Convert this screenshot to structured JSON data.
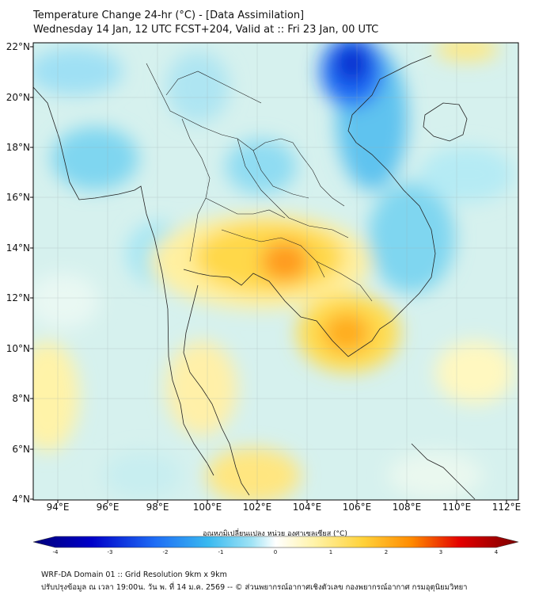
{
  "title": {
    "line1": "Temperature Change 24-hr (°C) - [Data Assimilation]",
    "line2": "Wednesday 14 Jan, 12 UTC FCST+204, Valid at :: Fri 23 Jan, 00 UTC"
  },
  "map": {
    "lat_labels": [
      "22°N",
      "20°N",
      "18°N",
      "16°N",
      "14°N",
      "12°N",
      "10°N",
      "8°N",
      "6°N",
      "4°N"
    ],
    "lat_values": [
      22,
      20,
      18,
      16,
      14,
      12,
      10,
      8,
      6,
      4
    ],
    "lon_labels": [
      "94°E",
      "96°E",
      "98°E",
      "100°E",
      "102°E",
      "104°E",
      "106°E",
      "108°E",
      "110°E",
      "112°E"
    ],
    "lon_values": [
      94,
      96,
      98,
      100,
      102,
      104,
      106,
      108,
      110,
      112
    ],
    "lon_range": [
      93,
      112.5
    ],
    "lat_range": [
      4,
      22.2
    ],
    "background_color": "#d6f1ee",
    "warm_anomalies": [
      {
        "name": "central-thailand-cambodia",
        "lon": 103.2,
        "lat": 13.6,
        "value": 2.0
      },
      {
        "name": "mekong-delta",
        "lon": 105.9,
        "lat": 10.5,
        "value": 1.6
      },
      {
        "name": "southern-thailand",
        "lon": 101.5,
        "lat": 5.2,
        "value": 1.0
      },
      {
        "name": "andaman-west",
        "lon": 93.2,
        "lat": 8.5,
        "value": 0.9
      }
    ],
    "cold_anomalies": [
      {
        "name": "gulf-of-tonkin-north",
        "lon": 106.0,
        "lat": 21.8,
        "value": -3.2
      },
      {
        "name": "myanmar-west",
        "lon": 95.0,
        "lat": 17.8,
        "value": -1.2
      },
      {
        "name": "laos-vietnam-coast",
        "lon": 108.8,
        "lat": 14.2,
        "value": -1.0
      }
    ]
  },
  "colorbar": {
    "title": "อุณหภูมิเปลี่ยนแปลง หน่วย องศาเซลเซียส (°C)",
    "min": -4,
    "max": 4,
    "tick_labels": [
      "-4",
      "-3",
      "-2",
      "-1",
      "0",
      "1",
      "2",
      "3",
      "4"
    ],
    "tick_values": [
      -4,
      -3,
      -2,
      -1,
      0,
      1,
      2,
      3,
      4
    ],
    "colors": [
      "#00007a",
      "#0000c8",
      "#1e6cf5",
      "#39b9f0",
      "#9fe3f5",
      "#ffffff",
      "#fff3a8",
      "#ffd23a",
      "#ff8a00",
      "#e30000",
      "#7a0000"
    ]
  },
  "footer": {
    "line1": "WRF-DA Domain 01 :: Grid Resolution 9km x 9km",
    "line2": "ปรับปรุงข้อมูล ณ เวลา 19:00น. วัน พ. ที่ 14 ม.ค. 2569 -- © ส่วนพยากรณ์อากาศเชิงตัวเลข กองพยากรณ์อากาศ กรมอุตุนิยมวิทยา"
  }
}
